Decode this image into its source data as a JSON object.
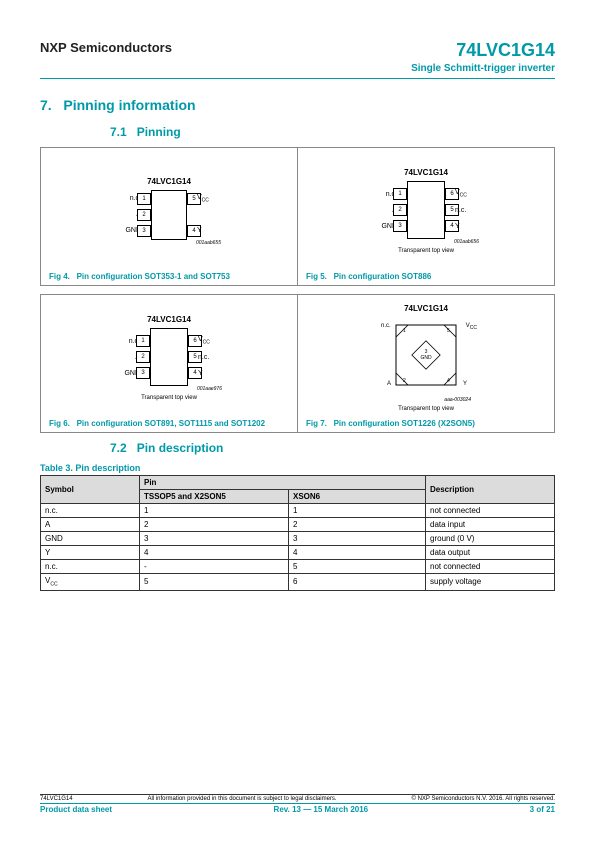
{
  "header": {
    "company": "NXP Semiconductors",
    "part_number": "74LVC1G14",
    "part_desc": "Single Schmitt-trigger inverter"
  },
  "section": {
    "number": "7.",
    "title": "Pinning information",
    "sub1": {
      "num": "7.1",
      "title": "Pinning"
    },
    "sub2": {
      "num": "7.2",
      "title": "Pin description"
    }
  },
  "chip_title": "74LVC1G14",
  "figs": {
    "f4": {
      "label": "Fig 4.",
      "caption": "Pin configuration SOT353-1 and SOT753",
      "code": "001aab655"
    },
    "f5": {
      "label": "Fig 5.",
      "caption": "Pin configuration SOT886",
      "code": "001aab656",
      "note": "Transparent top view"
    },
    "f6": {
      "label": "Fig 6.",
      "caption": "Pin configuration SOT891, SOT1115 and SOT1202",
      "code": "001aae976",
      "note": "Transparent top view"
    },
    "f7": {
      "label": "Fig 7.",
      "caption": "Pin configuration SOT1226 (X2SON5)",
      "code": "aaa-003024",
      "note": "Transparent top view"
    }
  },
  "pins5": {
    "p1": "n.c.",
    "p2": "A",
    "p3": "GND",
    "p4": "Y",
    "p5": "VCC"
  },
  "pins6": {
    "p1": "n.c.",
    "p2": "A",
    "p3": "GND",
    "p4": "Y",
    "p5": "n.c.",
    "p6": "VCC"
  },
  "x2son5": {
    "p1": "n.c.",
    "p2": "A",
    "p3": "GND",
    "p4": "Y",
    "p5": "VCC"
  },
  "table": {
    "caption": "Table 3.    Pin description",
    "headers": {
      "symbol": "Symbol",
      "pin": "Pin",
      "c1": "TSSOP5 and X2SON5",
      "c2": "XSON6",
      "desc": "Description"
    },
    "rows": [
      {
        "sym": "n.c.",
        "c1": "1",
        "c2": "1",
        "desc": "not connected"
      },
      {
        "sym": "A",
        "c1": "2",
        "c2": "2",
        "desc": "data input"
      },
      {
        "sym": "GND",
        "c1": "3",
        "c2": "3",
        "desc": "ground (0 V)"
      },
      {
        "sym": "Y",
        "c1": "4",
        "c2": "4",
        "desc": "data output"
      },
      {
        "sym": "n.c.",
        "c1": "-",
        "c2": "5",
        "desc": "not connected"
      },
      {
        "sym": "VCC",
        "c1": "5",
        "c2": "6",
        "desc": "supply voltage"
      }
    ]
  },
  "footer": {
    "part": "74LVC1G14",
    "disclaimer": "All information provided in this document is subject to legal disclaimers.",
    "copyright": "© NXP Semiconductors N.V. 2016. All rights reserved.",
    "doc_type": "Product data sheet",
    "rev": "Rev. 13 — 15 March 2016",
    "page": "3 of 21"
  }
}
